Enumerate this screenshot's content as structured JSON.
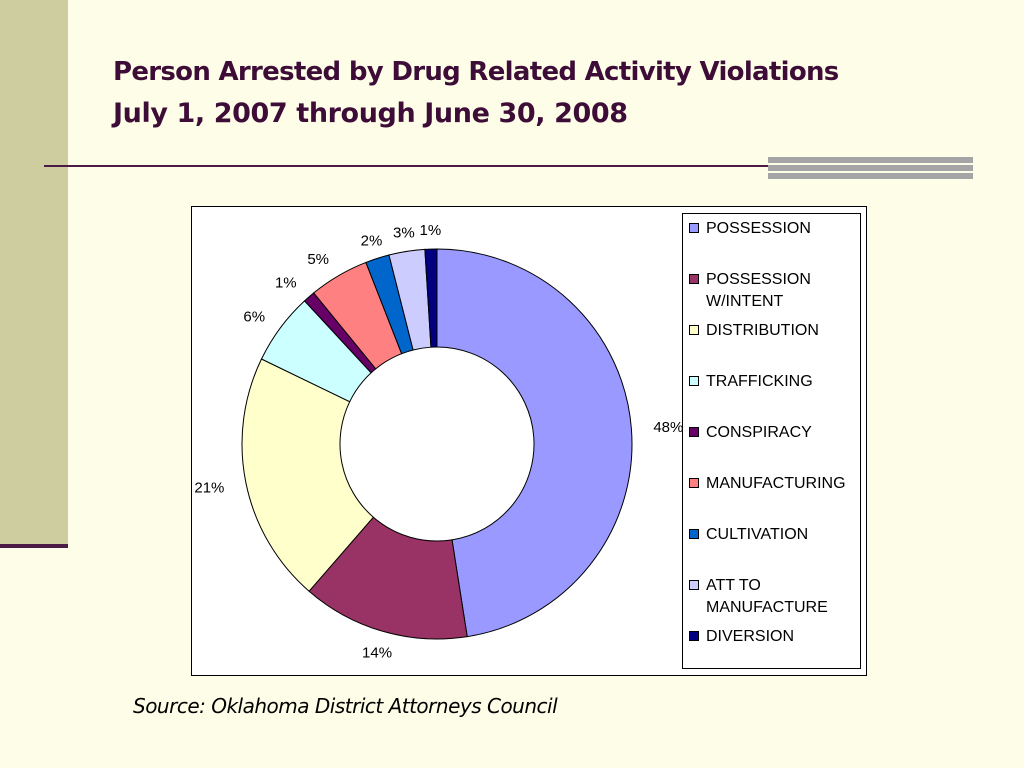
{
  "slide": {
    "title": "Person Arrested by Drug Related Activity Violations",
    "subtitle": "July 1, 2007 through June 30, 2008",
    "source": "Source:  Oklahoma District Attorneys Council"
  },
  "chart_data": {
    "type": "pie",
    "subtype": "doughnut",
    "title": "",
    "legend_position": "right",
    "slices": [
      {
        "label": "POSSESSION",
        "value": 48,
        "value_label": "48%",
        "color": "#9999ff"
      },
      {
        "label": "POSSESSION W/INTENT",
        "value": 14,
        "value_label": "14%",
        "color": "#993366"
      },
      {
        "label": "DISTRIBUTION",
        "value": 21,
        "value_label": "21%",
        "color": "#ffffcc"
      },
      {
        "label": "TRAFFICKING",
        "value": 6,
        "value_label": "6%",
        "color": "#ccffff"
      },
      {
        "label": "CONSPIRACY",
        "value": 1,
        "value_label": "1%",
        "color": "#660066"
      },
      {
        "label": "MANUFACTURING",
        "value": 5,
        "value_label": "5%",
        "color": "#ff8080"
      },
      {
        "label": "CULTIVATION",
        "value": 2,
        "value_label": "2%",
        "color": "#0066cc"
      },
      {
        "label": "ATT TO MANUFACTURE",
        "value": 3,
        "value_label": "3%",
        "color": "#ccccff"
      },
      {
        "label": "DIVERSION",
        "value": 1,
        "value_label": "1%",
        "color": "#000080"
      }
    ]
  },
  "legend": {
    "items": [
      {
        "label": "POSSESSION",
        "color": "#9999ff"
      },
      {
        "label": "POSSESSION\nW/INTENT",
        "color": "#993366"
      },
      {
        "label": "DISTRIBUTION",
        "color": "#ffffcc"
      },
      {
        "label": "TRAFFICKING",
        "color": "#ccffff"
      },
      {
        "label": "CONSPIRACY",
        "color": "#660066"
      },
      {
        "label": "MANUFACTURING",
        "color": "#ff8080"
      },
      {
        "label": "CULTIVATION",
        "color": "#0066cc"
      },
      {
        "label": "ATT TO\nMANUFACTURE",
        "color": "#ccccff"
      },
      {
        "label": "DIVERSION",
        "color": "#000080"
      }
    ]
  }
}
